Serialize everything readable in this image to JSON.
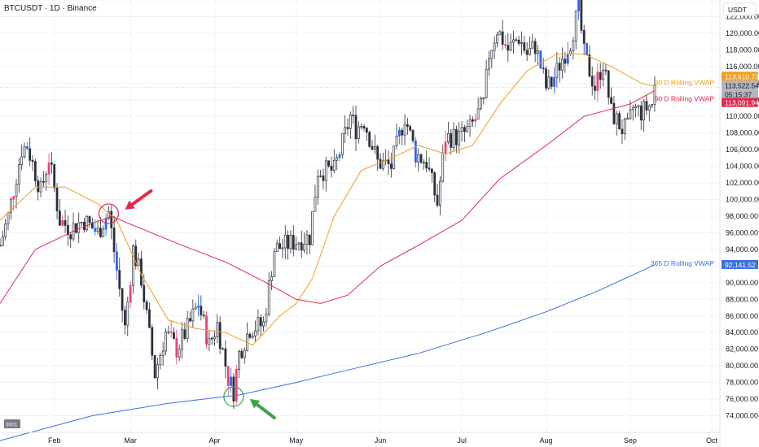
{
  "chart_data": {
    "type": "candlestick",
    "title": "BTCUSDT · 1D · Binance",
    "currency": "USDT",
    "ylim": [
      72000,
      124000
    ],
    "ytick_step": 2000,
    "xlim": [
      "2025-01-12",
      "2025-10-04"
    ],
    "month_labels": [
      {
        "date": "2025-02-01",
        "label": "Feb"
      },
      {
        "date": "2025-03-01",
        "label": "Mar"
      },
      {
        "date": "2025-04-01",
        "label": "Apr"
      },
      {
        "date": "2025-05-01",
        "label": "May"
      },
      {
        "date": "2025-06-01",
        "label": "Jun"
      },
      {
        "date": "2025-07-01",
        "label": "Jul"
      },
      {
        "date": "2025-08-01",
        "label": "Aug"
      },
      {
        "date": "2025-09-01",
        "label": "Sep"
      },
      {
        "date": "2025-10-01",
        "label": "Oct"
      }
    ],
    "price_anchors": [
      [
        "2025-01-12",
        94500
      ],
      [
        "2025-01-15",
        98000
      ],
      [
        "2025-01-20",
        106000
      ],
      [
        "2025-01-22",
        106500
      ],
      [
        "2025-01-27",
        101000
      ],
      [
        "2025-01-30",
        105000
      ],
      [
        "2025-02-03",
        97500
      ],
      [
        "2025-02-07",
        96500
      ],
      [
        "2025-02-12",
        97500
      ],
      [
        "2025-02-17",
        96000
      ],
      [
        "2025-02-21",
        98500
      ],
      [
        "2025-02-24",
        91500
      ],
      [
        "2025-02-27",
        84500
      ],
      [
        "2025-03-02",
        94000
      ],
      [
        "2025-03-05",
        90500
      ],
      [
        "2025-03-10",
        79000
      ],
      [
        "2025-03-14",
        84000
      ],
      [
        "2025-03-18",
        82000
      ],
      [
        "2025-03-22",
        84500
      ],
      [
        "2025-03-26",
        87500
      ],
      [
        "2025-03-30",
        82500
      ],
      [
        "2025-04-02",
        85000
      ],
      [
        "2025-04-06",
        78500
      ],
      [
        "2025-04-08",
        77000
      ],
      [
        "2025-04-10",
        81500
      ],
      [
        "2025-04-14",
        84500
      ],
      [
        "2025-04-19",
        85000
      ],
      [
        "2025-04-23",
        94000
      ],
      [
        "2025-04-27",
        94500
      ],
      [
        "2025-05-01",
        95000
      ],
      [
        "2025-05-06",
        95500
      ],
      [
        "2025-05-09",
        103500
      ],
      [
        "2025-05-15",
        103500
      ],
      [
        "2025-05-21",
        110000
      ],
      [
        "2025-05-23",
        108500
      ],
      [
        "2025-05-26",
        109500
      ],
      [
        "2025-05-31",
        104500
      ],
      [
        "2025-06-05",
        104000
      ],
      [
        "2025-06-10",
        110000
      ],
      [
        "2025-06-14",
        105500
      ],
      [
        "2025-06-18",
        104500
      ],
      [
        "2025-06-22",
        99500
      ],
      [
        "2025-06-25",
        107500
      ],
      [
        "2025-06-30",
        107500
      ],
      [
        "2025-07-04",
        108500
      ],
      [
        "2025-07-09",
        111500
      ],
      [
        "2025-07-11",
        117500
      ],
      [
        "2025-07-14",
        120500
      ],
      [
        "2025-07-18",
        118000
      ],
      [
        "2025-07-22",
        119500
      ],
      [
        "2025-07-25",
        117500
      ],
      [
        "2025-07-28",
        118500
      ],
      [
        "2025-08-01",
        113500
      ],
      [
        "2025-08-03",
        114000
      ],
      [
        "2025-08-07",
        117000
      ],
      [
        "2025-08-10",
        119000
      ],
      [
        "2025-08-13",
        123000
      ],
      [
        "2025-08-15",
        117500
      ],
      [
        "2025-08-19",
        113500
      ],
      [
        "2025-08-22",
        116500
      ],
      [
        "2025-08-25",
        110500
      ],
      [
        "2025-08-29",
        108500
      ],
      [
        "2025-08-31",
        108500
      ],
      [
        "2025-09-02",
        111000
      ],
      [
        "2025-09-05",
        110500
      ],
      [
        "2025-09-09",
        111500
      ],
      [
        "2025-09-10",
        113522
      ]
    ],
    "series": [
      {
        "name": "30 D Rolling VWAP",
        "color": "#f59d1c",
        "last_value": "113,610.73",
        "points": [
          [
            "2025-01-12",
            97500
          ],
          [
            "2025-01-25",
            101500
          ],
          [
            "2025-02-05",
            101500
          ],
          [
            "2025-02-17",
            99500
          ],
          [
            "2025-02-24",
            97500
          ],
          [
            "2025-03-05",
            91000
          ],
          [
            "2025-03-15",
            85500
          ],
          [
            "2025-03-25",
            84500
          ],
          [
            "2025-04-05",
            84000
          ],
          [
            "2025-04-15",
            82500
          ],
          [
            "2025-04-25",
            86000
          ],
          [
            "2025-05-01",
            87500
          ],
          [
            "2025-05-07",
            90500
          ],
          [
            "2025-05-15",
            98000
          ],
          [
            "2025-05-25",
            103500
          ],
          [
            "2025-06-05",
            105000
          ],
          [
            "2025-06-15",
            106500
          ],
          [
            "2025-06-25",
            105500
          ],
          [
            "2025-07-05",
            106500
          ],
          [
            "2025-07-15",
            111500
          ],
          [
            "2025-07-25",
            115500
          ],
          [
            "2025-08-05",
            117500
          ],
          [
            "2025-08-15",
            117500
          ],
          [
            "2025-08-25",
            116000
          ],
          [
            "2025-09-05",
            114000
          ],
          [
            "2025-09-10",
            113610
          ]
        ]
      },
      {
        "name": "90 D Rolling VWAP",
        "color": "#e0294a",
        "last_value": "113,091.94",
        "points": [
          [
            "2025-01-12",
            87500
          ],
          [
            "2025-01-25",
            94000
          ],
          [
            "2025-02-10",
            96500
          ],
          [
            "2025-02-22",
            98000
          ],
          [
            "2025-03-05",
            96500
          ],
          [
            "2025-03-20",
            94500
          ],
          [
            "2025-04-05",
            92500
          ],
          [
            "2025-04-20",
            90000
          ],
          [
            "2025-05-01",
            88000
          ],
          [
            "2025-05-10",
            87500
          ],
          [
            "2025-05-20",
            88500
          ],
          [
            "2025-06-01",
            92000
          ],
          [
            "2025-06-15",
            94500
          ],
          [
            "2025-07-01",
            97500
          ],
          [
            "2025-07-15",
            102500
          ],
          [
            "2025-08-01",
            106500
          ],
          [
            "2025-08-15",
            110000
          ],
          [
            "2025-09-01",
            111500
          ],
          [
            "2025-09-10",
            113092
          ]
        ]
      },
      {
        "name": "365 D Rolling VWAP",
        "color": "#3a6fe0",
        "last_value": "92,141.52",
        "points": [
          [
            "2025-01-12",
            71000
          ],
          [
            "2025-02-15",
            74000
          ],
          [
            "2025-03-15",
            75500
          ],
          [
            "2025-04-10",
            76500
          ],
          [
            "2025-05-01",
            78000
          ],
          [
            "2025-05-20",
            79500
          ],
          [
            "2025-06-15",
            81500
          ],
          [
            "2025-07-10",
            84000
          ],
          [
            "2025-08-01",
            86500
          ],
          [
            "2025-08-20",
            89000
          ],
          [
            "2025-09-10",
            92141
          ]
        ]
      }
    ],
    "current_price": "113,522.54",
    "countdown": "05:15:37",
    "annotations": [
      {
        "type": "circle",
        "date": "2025-02-21",
        "value": 98300,
        "color": "#e0294a",
        "arrow": "upper-right"
      },
      {
        "type": "circle",
        "date": "2025-04-08",
        "value": 76300,
        "color": "#3aa547",
        "arrow": "lower-right"
      }
    ],
    "corner_badge": "3001"
  }
}
